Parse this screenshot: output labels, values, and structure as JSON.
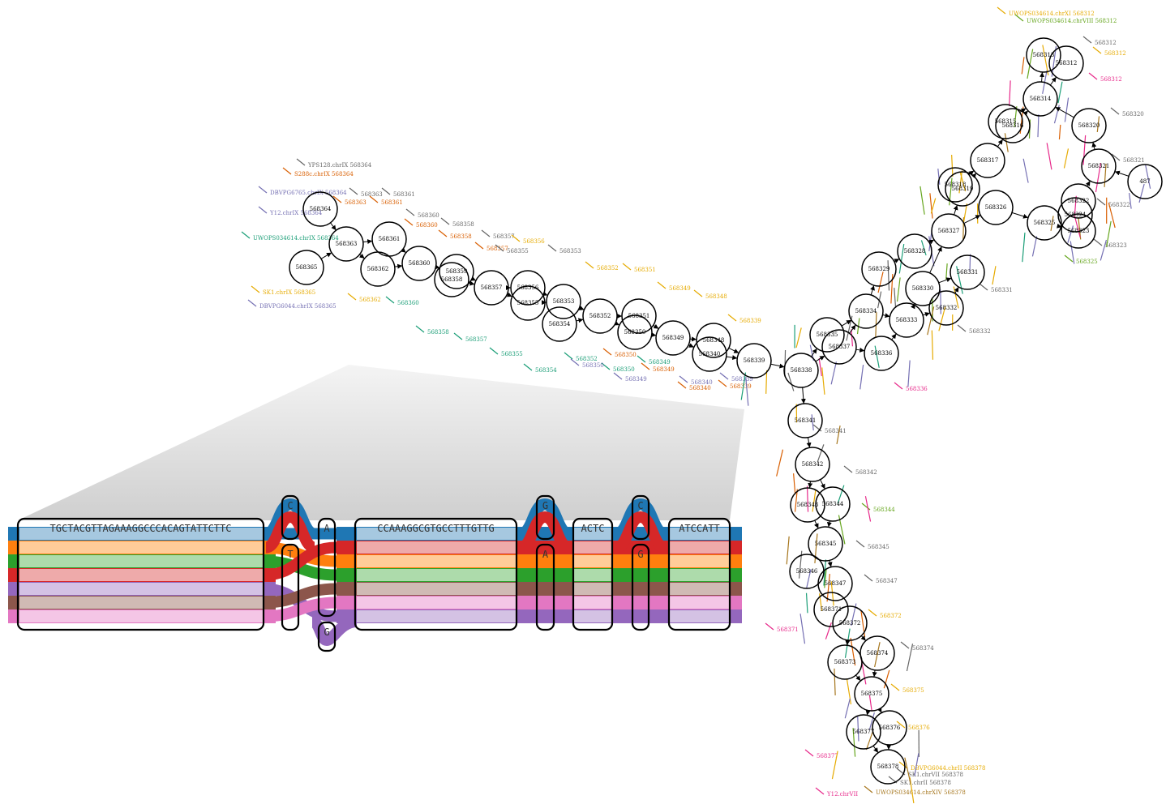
{
  "colors": {
    "paths": [
      {
        "dark": "#1f77b4",
        "light": "#a6c8e0"
      },
      {
        "dark": "#ff7f0e",
        "light": "#ffcc99"
      },
      {
        "dark": "#2ca02c",
        "light": "#addbab"
      },
      {
        "dark": "#d62728",
        "light": "#eeaaaa"
      },
      {
        "dark": "#9467bd",
        "light": "#d4c2e4"
      },
      {
        "dark": "#8c564b",
        "light": "#d0bab4"
      },
      {
        "dark": "#e377c2",
        "light": "#f4c6e6"
      }
    ]
  },
  "sequence_panel": {
    "segments": [
      {
        "id": "seg1",
        "text": "TGCTACGTTAGAAAGGCCCACAGTATTCTTC"
      },
      {
        "id": "snp1a",
        "text": "C"
      },
      {
        "id": "snp1b",
        "text": "T"
      },
      {
        "id": "snp2a",
        "text": "A"
      },
      {
        "id": "snp2b",
        "text": "G"
      },
      {
        "id": "seg2",
        "text": "CCAAAGGCGTGCCTTTGTTG"
      },
      {
        "id": "snp3a",
        "text": "G"
      },
      {
        "id": "snp3b",
        "text": "A"
      },
      {
        "id": "seg3",
        "text": "ACTC"
      },
      {
        "id": "snp4a",
        "text": "C"
      },
      {
        "id": "snp4b",
        "text": "G"
      },
      {
        "id": "seg4",
        "text": "ATCCATT"
      }
    ]
  },
  "graph": {
    "nodes": [
      "568364",
      "568365",
      "568363",
      "568361",
      "568362",
      "568360",
      "568359",
      "568358",
      "568357",
      "568356",
      "568355",
      "568353",
      "568354",
      "568352",
      "568351",
      "568350",
      "568349",
      "568348",
      "568340",
      "568339",
      "568338",
      "568341",
      "568342",
      "568343",
      "568344",
      "568345",
      "568346",
      "568347",
      "568371",
      "568372",
      "568373",
      "568374",
      "568375",
      "568376",
      "568377",
      "568378",
      "568335",
      "568337",
      "568334",
      "568336",
      "568333",
      "568330",
      "568332",
      "568331",
      "568329",
      "568328",
      "568327",
      "568326",
      "568325",
      "568324",
      "568323",
      "568322",
      "568321",
      "568320",
      "568319",
      "568318",
      "568317",
      "568316",
      "568315",
      "568314",
      "568313",
      "568312",
      "487"
    ],
    "edges": [
      [
        "568365",
        "568363"
      ],
      [
        "568364",
        "568363"
      ],
      [
        "568363",
        "568361"
      ],
      [
        "568363",
        "568362"
      ],
      [
        "568361",
        "568360"
      ],
      [
        "568362",
        "568360"
      ],
      [
        "568360",
        "568359"
      ],
      [
        "568359",
        "568357"
      ],
      [
        "568358",
        "568357"
      ],
      [
        "568357",
        "568356"
      ],
      [
        "568357",
        "568355"
      ],
      [
        "568356",
        "568353"
      ],
      [
        "568355",
        "568353"
      ],
      [
        "568353",
        "568352"
      ],
      [
        "568354",
        "568352"
      ],
      [
        "568352",
        "568351"
      ],
      [
        "568352",
        "568350"
      ],
      [
        "568351",
        "568349"
      ],
      [
        "568350",
        "568349"
      ],
      [
        "568349",
        "568348"
      ],
      [
        "568349",
        "568340"
      ],
      [
        "568348",
        "568339"
      ],
      [
        "568340",
        "568339"
      ],
      [
        "568339",
        "568338"
      ],
      [
        "568338",
        "568341"
      ],
      [
        "568341",
        "568342"
      ],
      [
        "568342",
        "568343"
      ],
      [
        "568342",
        "568344"
      ],
      [
        "568343",
        "568345"
      ],
      [
        "568344",
        "568345"
      ],
      [
        "568345",
        "568346"
      ],
      [
        "568345",
        "568347"
      ],
      [
        "568346",
        "568347"
      ],
      [
        "568347",
        "568371"
      ],
      [
        "568371",
        "568372"
      ],
      [
        "568372",
        "568373"
      ],
      [
        "568372",
        "568374"
      ],
      [
        "568373",
        "568375"
      ],
      [
        "568374",
        "568375"
      ],
      [
        "568375",
        "568376"
      ],
      [
        "568375",
        "568377"
      ],
      [
        "568376",
        "568378"
      ],
      [
        "568377",
        "568378"
      ],
      [
        "568338",
        "568335"
      ],
      [
        "568338",
        "568337"
      ],
      [
        "568335",
        "568334"
      ],
      [
        "568337",
        "568334"
      ],
      [
        "568337",
        "568336"
      ],
      [
        "568334",
        "568333"
      ],
      [
        "568336",
        "568333"
      ],
      [
        "568333",
        "568330"
      ],
      [
        "568333",
        "568332"
      ],
      [
        "568330",
        "568331"
      ],
      [
        "568332",
        "568331"
      ],
      [
        "568334",
        "568329"
      ],
      [
        "568329",
        "568328"
      ],
      [
        "568328",
        "568327"
      ],
      [
        "568330",
        "568327"
      ],
      [
        "568327",
        "568326"
      ],
      [
        "568327",
        "568319"
      ],
      [
        "568326",
        "568325"
      ],
      [
        "568325",
        "568324"
      ],
      [
        "568325",
        "568323"
      ],
      [
        "568324",
        "568322"
      ],
      [
        "568323",
        "568322"
      ],
      [
        "568322",
        "568321"
      ],
      [
        "568321",
        "568320"
      ],
      [
        "487",
        "568321"
      ],
      [
        "568319",
        "568317"
      ],
      [
        "568318",
        "568317"
      ],
      [
        "568317",
        "568316"
      ],
      [
        "568316",
        "568314"
      ],
      [
        "568315",
        "568314"
      ],
      [
        "568314",
        "568313"
      ],
      [
        "568314",
        "568312"
      ],
      [
        "568320",
        "568314"
      ]
    ]
  },
  "annotations": [
    {
      "text": "YPS128.chrIX  568364",
      "color": "#666666"
    },
    {
      "text": "S288c.chrIX  568364",
      "color": "#d95f02"
    },
    {
      "text": "DBVPG6765.chrIX  568364",
      "color": "#7570b3"
    },
    {
      "text": "Y12.chrIX  568364",
      "color": "#7570b3"
    },
    {
      "text": "UWOPS034614.chrIX  568364",
      "color": "#1b9e77"
    },
    {
      "text": "SK1.chrIX  568365",
      "color": "#e6ab02"
    },
    {
      "text": "DBVPG6044.chrIX  568365",
      "color": "#7570b3"
    },
    {
      "text": "568363",
      "color": "#666666"
    },
    {
      "text": "568363",
      "color": "#d95f02"
    },
    {
      "text": "568361",
      "color": "#666666"
    },
    {
      "text": "568361",
      "color": "#d95f02"
    },
    {
      "text": "568360",
      "color": "#666666"
    },
    {
      "text": "568360",
      "color": "#d95f02"
    },
    {
      "text": "568358",
      "color": "#666666"
    },
    {
      "text": "568358",
      "color": "#d95f02"
    },
    {
      "text": "568357",
      "color": "#666666"
    },
    {
      "text": "568357",
      "color": "#d95f02"
    },
    {
      "text": "568356",
      "color": "#e6ab02"
    },
    {
      "text": "568355",
      "color": "#666666"
    },
    {
      "text": "568353",
      "color": "#666666"
    },
    {
      "text": "568352",
      "color": "#e6ab02"
    },
    {
      "text": "568351",
      "color": "#e6ab02"
    },
    {
      "text": "568349",
      "color": "#e6ab02"
    },
    {
      "text": "568348",
      "color": "#e6ab02"
    },
    {
      "text": "568339",
      "color": "#e6ab02"
    },
    {
      "text": "568362",
      "color": "#e6ab02"
    },
    {
      "text": "568360",
      "color": "#1b9e77"
    },
    {
      "text": "568358",
      "color": "#1b9e77"
    },
    {
      "text": "568357",
      "color": "#1b9e77"
    },
    {
      "text": "568355",
      "color": "#1b9e77"
    },
    {
      "text": "568354",
      "color": "#1b9e77"
    },
    {
      "text": "568352",
      "color": "#1b9e77"
    },
    {
      "text": "568350",
      "color": "#1b9e77"
    },
    {
      "text": "568349",
      "color": "#1b9e77"
    },
    {
      "text": "568350",
      "color": "#d95f02"
    },
    {
      "text": "568349",
      "color": "#d95f02"
    },
    {
      "text": "568340",
      "color": "#d95f02"
    },
    {
      "text": "568339",
      "color": "#d95f02"
    },
    {
      "text": "568350",
      "color": "#7570b3"
    },
    {
      "text": "568349",
      "color": "#7570b3"
    },
    {
      "text": "568340",
      "color": "#7570b3"
    },
    {
      "text": "568339",
      "color": "#7570b3"
    },
    {
      "text": "UWOPS034614.chrXI  568312",
      "color": "#e6ab02"
    },
    {
      "text": "UWOPS034614.chrVIII  568312",
      "color": "#66a61e"
    },
    {
      "text": "568312",
      "color": "#666666"
    },
    {
      "text": "568312",
      "color": "#e6ab02"
    },
    {
      "text": "568312",
      "color": "#e7298a"
    },
    {
      "text": "568320",
      "color": "#666666"
    },
    {
      "text": "568321",
      "color": "#666666"
    },
    {
      "text": "568322",
      "color": "#666666"
    },
    {
      "text": "568323",
      "color": "#666666"
    },
    {
      "text": "568325",
      "color": "#66a61e"
    },
    {
      "text": "568331",
      "color": "#666666"
    },
    {
      "text": "568332",
      "color": "#666666"
    },
    {
      "text": "568336",
      "color": "#e7298a"
    },
    {
      "text": "568341",
      "color": "#666666"
    },
    {
      "text": "568342",
      "color": "#666666"
    },
    {
      "text": "568344",
      "color": "#66a61e"
    },
    {
      "text": "568345",
      "color": "#666666"
    },
    {
      "text": "568347",
      "color": "#666666"
    },
    {
      "text": "568371",
      "color": "#e7298a"
    },
    {
      "text": "568372",
      "color": "#e6ab02"
    },
    {
      "text": "568374",
      "color": "#666666"
    },
    {
      "text": "568375",
      "color": "#e6ab02"
    },
    {
      "text": "568376",
      "color": "#e6ab02"
    },
    {
      "text": "568377",
      "color": "#e7298a"
    },
    {
      "text": "DBVPG6044.chrII  568378",
      "color": "#e6ab02"
    },
    {
      "text": "SK1.chrVII  568378",
      "color": "#666666"
    },
    {
      "text": "SK1.chrII  568378",
      "color": "#666666"
    },
    {
      "text": "Y12.chrVII",
      "color": "#e7298a"
    },
    {
      "text": "UWOPS034614.chrXIV  568378",
      "color": "#a6761d"
    }
  ]
}
